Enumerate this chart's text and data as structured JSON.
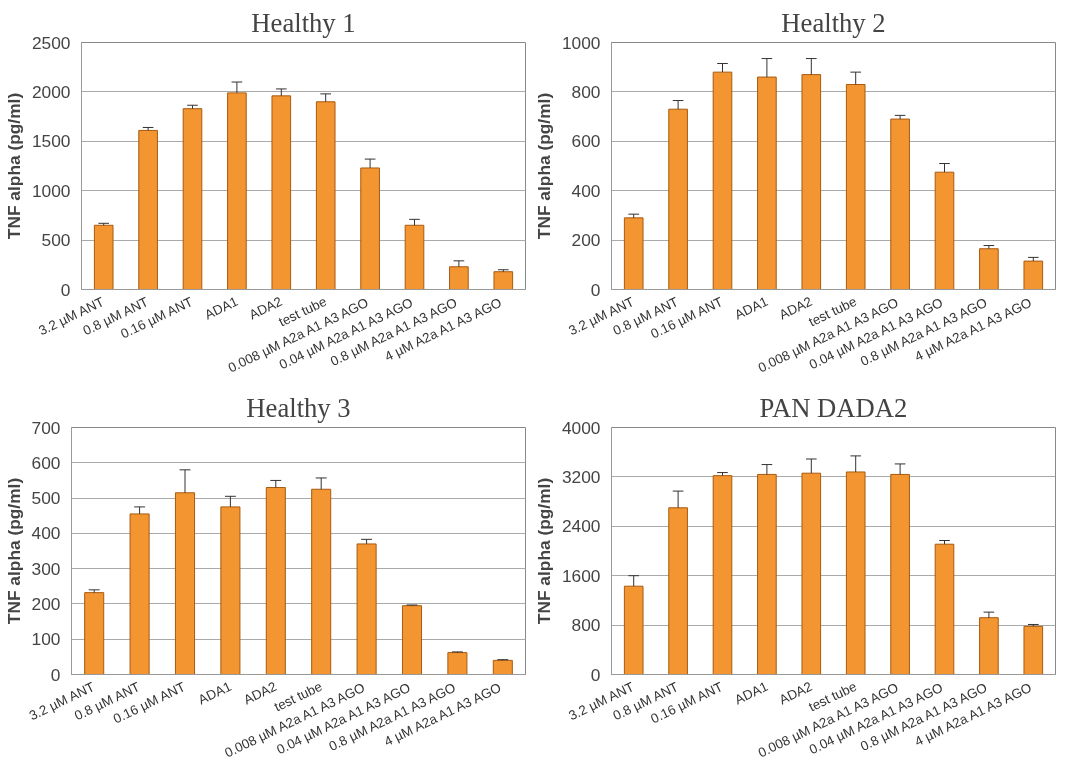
{
  "chart_data": [
    {
      "type": "bar",
      "title": "Healthy 1",
      "ylabel": "TNF alpha (pg/ml)",
      "categories": [
        "3.2 µM ANT",
        "0.8 µM ANT",
        "0.16 µM ANT",
        "ADA1",
        "ADA2",
        "test tube",
        "0.008 µM A2a A1 A3 AGO",
        "0.04 µM A2a A1 A3 AGO",
        "0.8 µM A2a A1 A3 AGO",
        "4 µM A2a A1 A3 AGO"
      ],
      "color": "#f39530",
      "values": [
        650,
        1610,
        1830,
        1990,
        1960,
        1900,
        1230,
        650,
        230,
        180
      ],
      "errors": [
        [
          650,
          670
        ],
        [
          1610,
          1640
        ],
        [
          1830,
          1865
        ],
        [
          1990,
          2100
        ],
        [
          1960,
          2030
        ],
        [
          1900,
          1980
        ],
        [
          1230,
          1320
        ],
        [
          650,
          710
        ],
        [
          230,
          290
        ],
        [
          180,
          200
        ]
      ],
      "ylim": [
        0,
        2500
      ],
      "yticks": [
        0,
        500,
        1000,
        1500,
        2000,
        2500
      ],
      "grid": "y"
    },
    {
      "type": "bar",
      "title": "Healthy 2",
      "ylabel": "TNF alpha (pg/ml)",
      "categories": [
        "3.2 µM ANT",
        "0.8 µM ANT",
        "0.16 µM ANT",
        "ADA1",
        "ADA2",
        "test tube",
        "0.008 µM A2a A1 A3 AGO",
        "0.04 µM A2a A1 A3 AGO",
        "0.8 µM A2a A1 A3 AGO",
        "4 µM A2a A1 A3 AGO"
      ],
      "color": "#f39530",
      "values": [
        290,
        730,
        880,
        860,
        870,
        830,
        690,
        475,
        165,
        115
      ],
      "errors": [
        [
          290,
          305
        ],
        [
          730,
          765
        ],
        [
          880,
          915
        ],
        [
          860,
          935
        ],
        [
          870,
          935
        ],
        [
          830,
          880
        ],
        [
          690,
          705
        ],
        [
          475,
          510
        ],
        [
          165,
          178
        ],
        [
          115,
          130
        ]
      ],
      "ylim": [
        0,
        1000
      ],
      "yticks": [
        0,
        200,
        400,
        600,
        800,
        1000
      ],
      "grid": "y"
    },
    {
      "type": "bar",
      "title": "Healthy 3",
      "ylabel": "TNF alpha (pg/ml)",
      "categories": [
        "3.2 µM ANT",
        "0.8 µM ANT",
        "0.16 µM ANT",
        "ADA1",
        "ADA2",
        "test tube",
        "0.008 µM A2a A1 A3 AGO",
        "0.04 µM A2a A1 A3 AGO",
        "0.8 µM A2a A1 A3 AGO",
        "4 µM A2a A1 A3 AGO"
      ],
      "color": "#f39530",
      "values": [
        232,
        455,
        515,
        475,
        530,
        525,
        370,
        195,
        62,
        40
      ],
      "errors": [
        [
          232,
          240
        ],
        [
          455,
          475
        ],
        [
          515,
          580
        ],
        [
          475,
          505
        ],
        [
          530,
          550
        ],
        [
          525,
          557
        ],
        [
          370,
          383
        ],
        [
          195,
          197
        ],
        [
          62,
          64
        ],
        [
          40,
          42
        ]
      ],
      "ylim": [
        0,
        700
      ],
      "yticks": [
        0,
        100,
        200,
        300,
        400,
        500,
        600,
        700
      ],
      "grid": "y"
    },
    {
      "type": "bar",
      "title": "PAN DADA2",
      "ylabel": "TNF alpha (pg/ml)",
      "categories": [
        "3.2 µM ANT",
        "0.8 µM ANT",
        "0.16 µM ANT",
        "ADA1",
        "ADA2",
        "test tube",
        "0.008 µM A2a A1 A3 AGO",
        "0.04 µM A2a A1 A3 AGO",
        "0.8 µM A2a A1 A3 AGO",
        "4 µM A2a A1 A3 AGO"
      ],
      "color": "#f39530",
      "values": [
        1430,
        2700,
        3220,
        3240,
        3260,
        3280,
        3240,
        2110,
        920,
        780
      ],
      "errors": [
        [
          1430,
          1600
        ],
        [
          2700,
          2970
        ],
        [
          3220,
          3270
        ],
        [
          3240,
          3400
        ],
        [
          3260,
          3490
        ],
        [
          3280,
          3540
        ],
        [
          3240,
          3410
        ],
        [
          2110,
          2170
        ],
        [
          920,
          1010
        ],
        [
          780,
          810
        ]
      ],
      "ylim": [
        0,
        4000
      ],
      "yticks": [
        0,
        800,
        1600,
        2400,
        3200,
        4000
      ],
      "grid": "y"
    }
  ]
}
